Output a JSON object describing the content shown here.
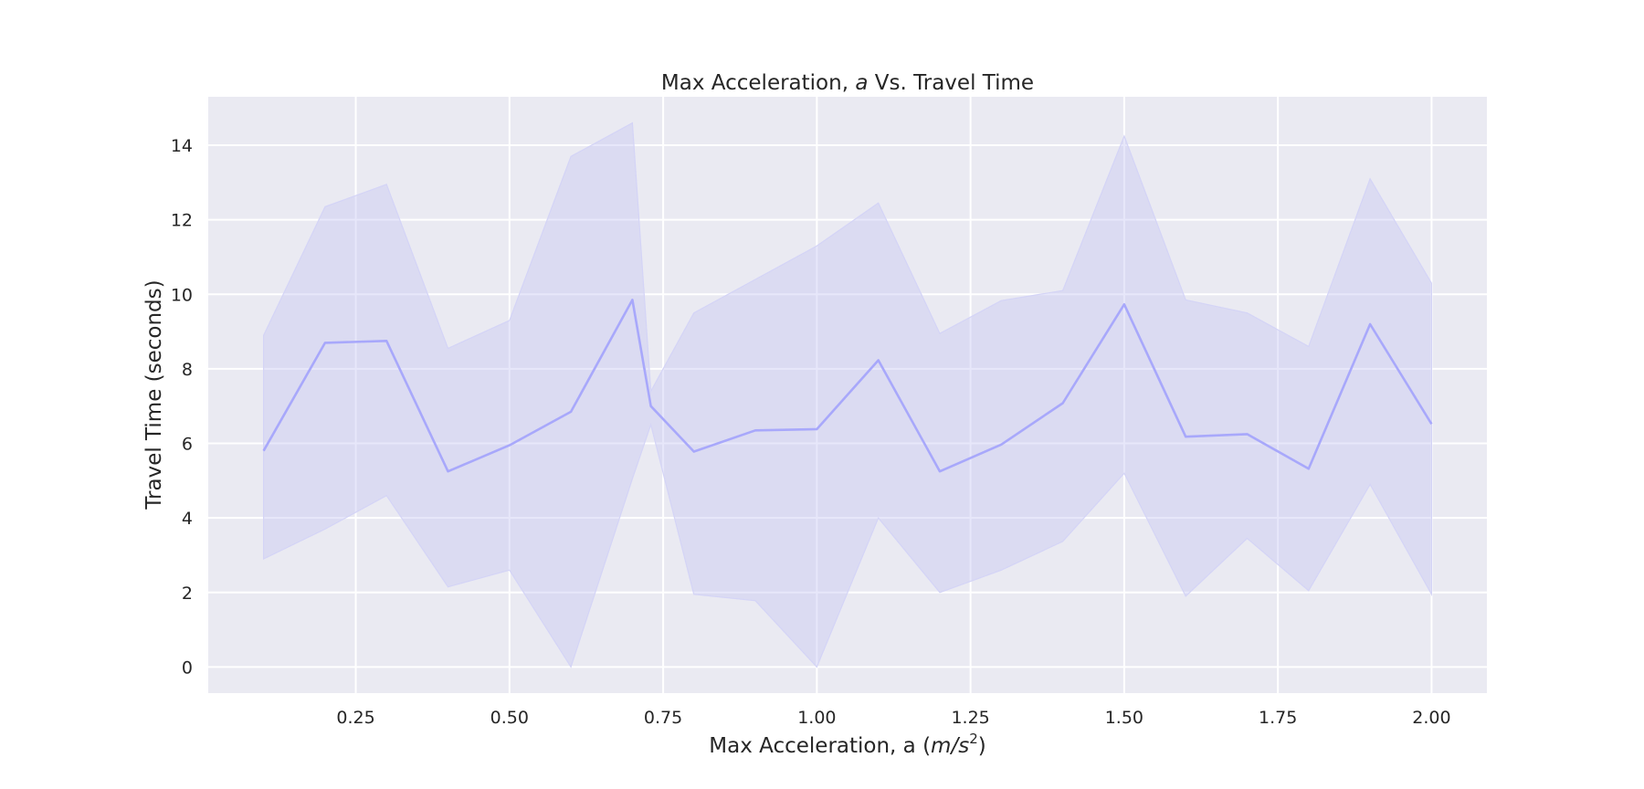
{
  "chart_data": {
    "type": "line",
    "title_prefix": "Max Acceleration, ",
    "title_var": "a",
    "title_suffix": " Vs. Travel Time",
    "xlabel_prefix": "Max Acceleration, a (",
    "xlabel_unit_base": "m/s",
    "xlabel_unit_exp": "2",
    "xlabel_suffix": ")",
    "ylabel": "Travel Time (seconds)",
    "xlim": [
      0.01,
      2.09
    ],
    "ylim": [
      -0.7,
      15.3
    ],
    "xticks": [
      0.25,
      0.5,
      0.75,
      1.0,
      1.25,
      1.5,
      1.75,
      2.0
    ],
    "xtick_labels": [
      "0.25",
      "0.50",
      "0.75",
      "1.00",
      "1.25",
      "1.50",
      "1.75",
      "2.00"
    ],
    "yticks": [
      0,
      2,
      4,
      6,
      8,
      10,
      12,
      14
    ],
    "ytick_labels": [
      "0",
      "2",
      "4",
      "6",
      "8",
      "10",
      "12",
      "14"
    ],
    "grid": true,
    "series": [
      {
        "x": [
          0.1,
          0.2,
          0.3,
          0.4,
          0.5,
          0.6,
          0.7,
          0.73,
          0.8,
          0.9,
          1.0,
          1.1,
          1.2,
          1.3,
          1.4,
          1.5,
          1.6,
          1.7,
          1.8,
          1.9,
          2.0
        ],
        "y": [
          5.8,
          8.7,
          8.75,
          5.25,
          5.95,
          6.85,
          9.85,
          7.0,
          5.78,
          6.35,
          6.38,
          8.23,
          5.25,
          5.97,
          7.08,
          9.73,
          6.18,
          6.25,
          5.32,
          9.2,
          6.52
        ],
        "upper": [
          8.9,
          12.35,
          12.95,
          8.55,
          9.3,
          13.7,
          14.6,
          7.4,
          9.5,
          10.4,
          11.3,
          12.45,
          8.95,
          9.83,
          10.1,
          14.25,
          9.85,
          9.5,
          8.6,
          13.1,
          10.3
        ],
        "lower": [
          2.9,
          3.7,
          4.6,
          2.15,
          2.6,
          0.0,
          5.05,
          6.5,
          1.95,
          1.78,
          0.0,
          4.0,
          2.0,
          2.6,
          3.37,
          5.2,
          1.9,
          3.45,
          2.05,
          4.9,
          1.95
        ],
        "color": "#a8a8fb"
      }
    ]
  }
}
